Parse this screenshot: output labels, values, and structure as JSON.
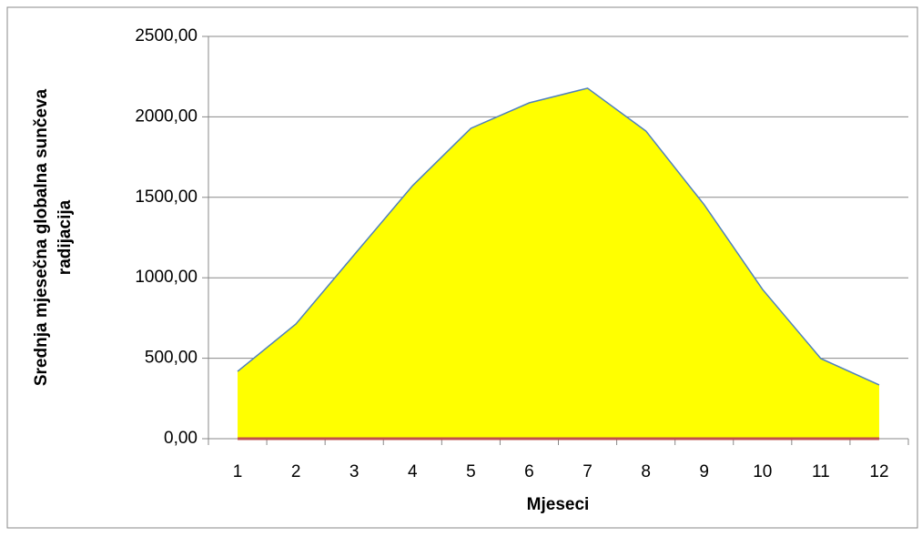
{
  "chart_data": {
    "type": "area",
    "xlabel": "Mjeseci",
    "ylabel": [
      "Srednja mjesečna globalna sunčeva",
      "radijacija"
    ],
    "categories": [
      "1",
      "2",
      "3",
      "4",
      "5",
      "6",
      "7",
      "8",
      "9",
      "10",
      "11",
      "12"
    ],
    "series": [
      {
        "color": "#ffff00",
        "line_color": "#4f81bd",
        "values": [
          418,
          713,
          1143,
          1572,
          1929,
          2087,
          2178,
          1912,
          1454,
          928,
          498,
          334
        ]
      },
      {
        "color": "#c0504d",
        "values": [
          0,
          0,
          0,
          0,
          0,
          0,
          0,
          0,
          0,
          0,
          0,
          0
        ]
      }
    ],
    "ylim": [
      0,
      2500
    ],
    "yticks": [
      {
        "value": 0,
        "label": "0,00"
      },
      {
        "value": 500,
        "label": "500,00"
      },
      {
        "value": 1000,
        "label": "1000,00"
      },
      {
        "value": 1500,
        "label": "1500,00"
      },
      {
        "value": 2000,
        "label": "2000,00"
      },
      {
        "value": 2500,
        "label": "2500,00"
      }
    ],
    "grid": true
  }
}
